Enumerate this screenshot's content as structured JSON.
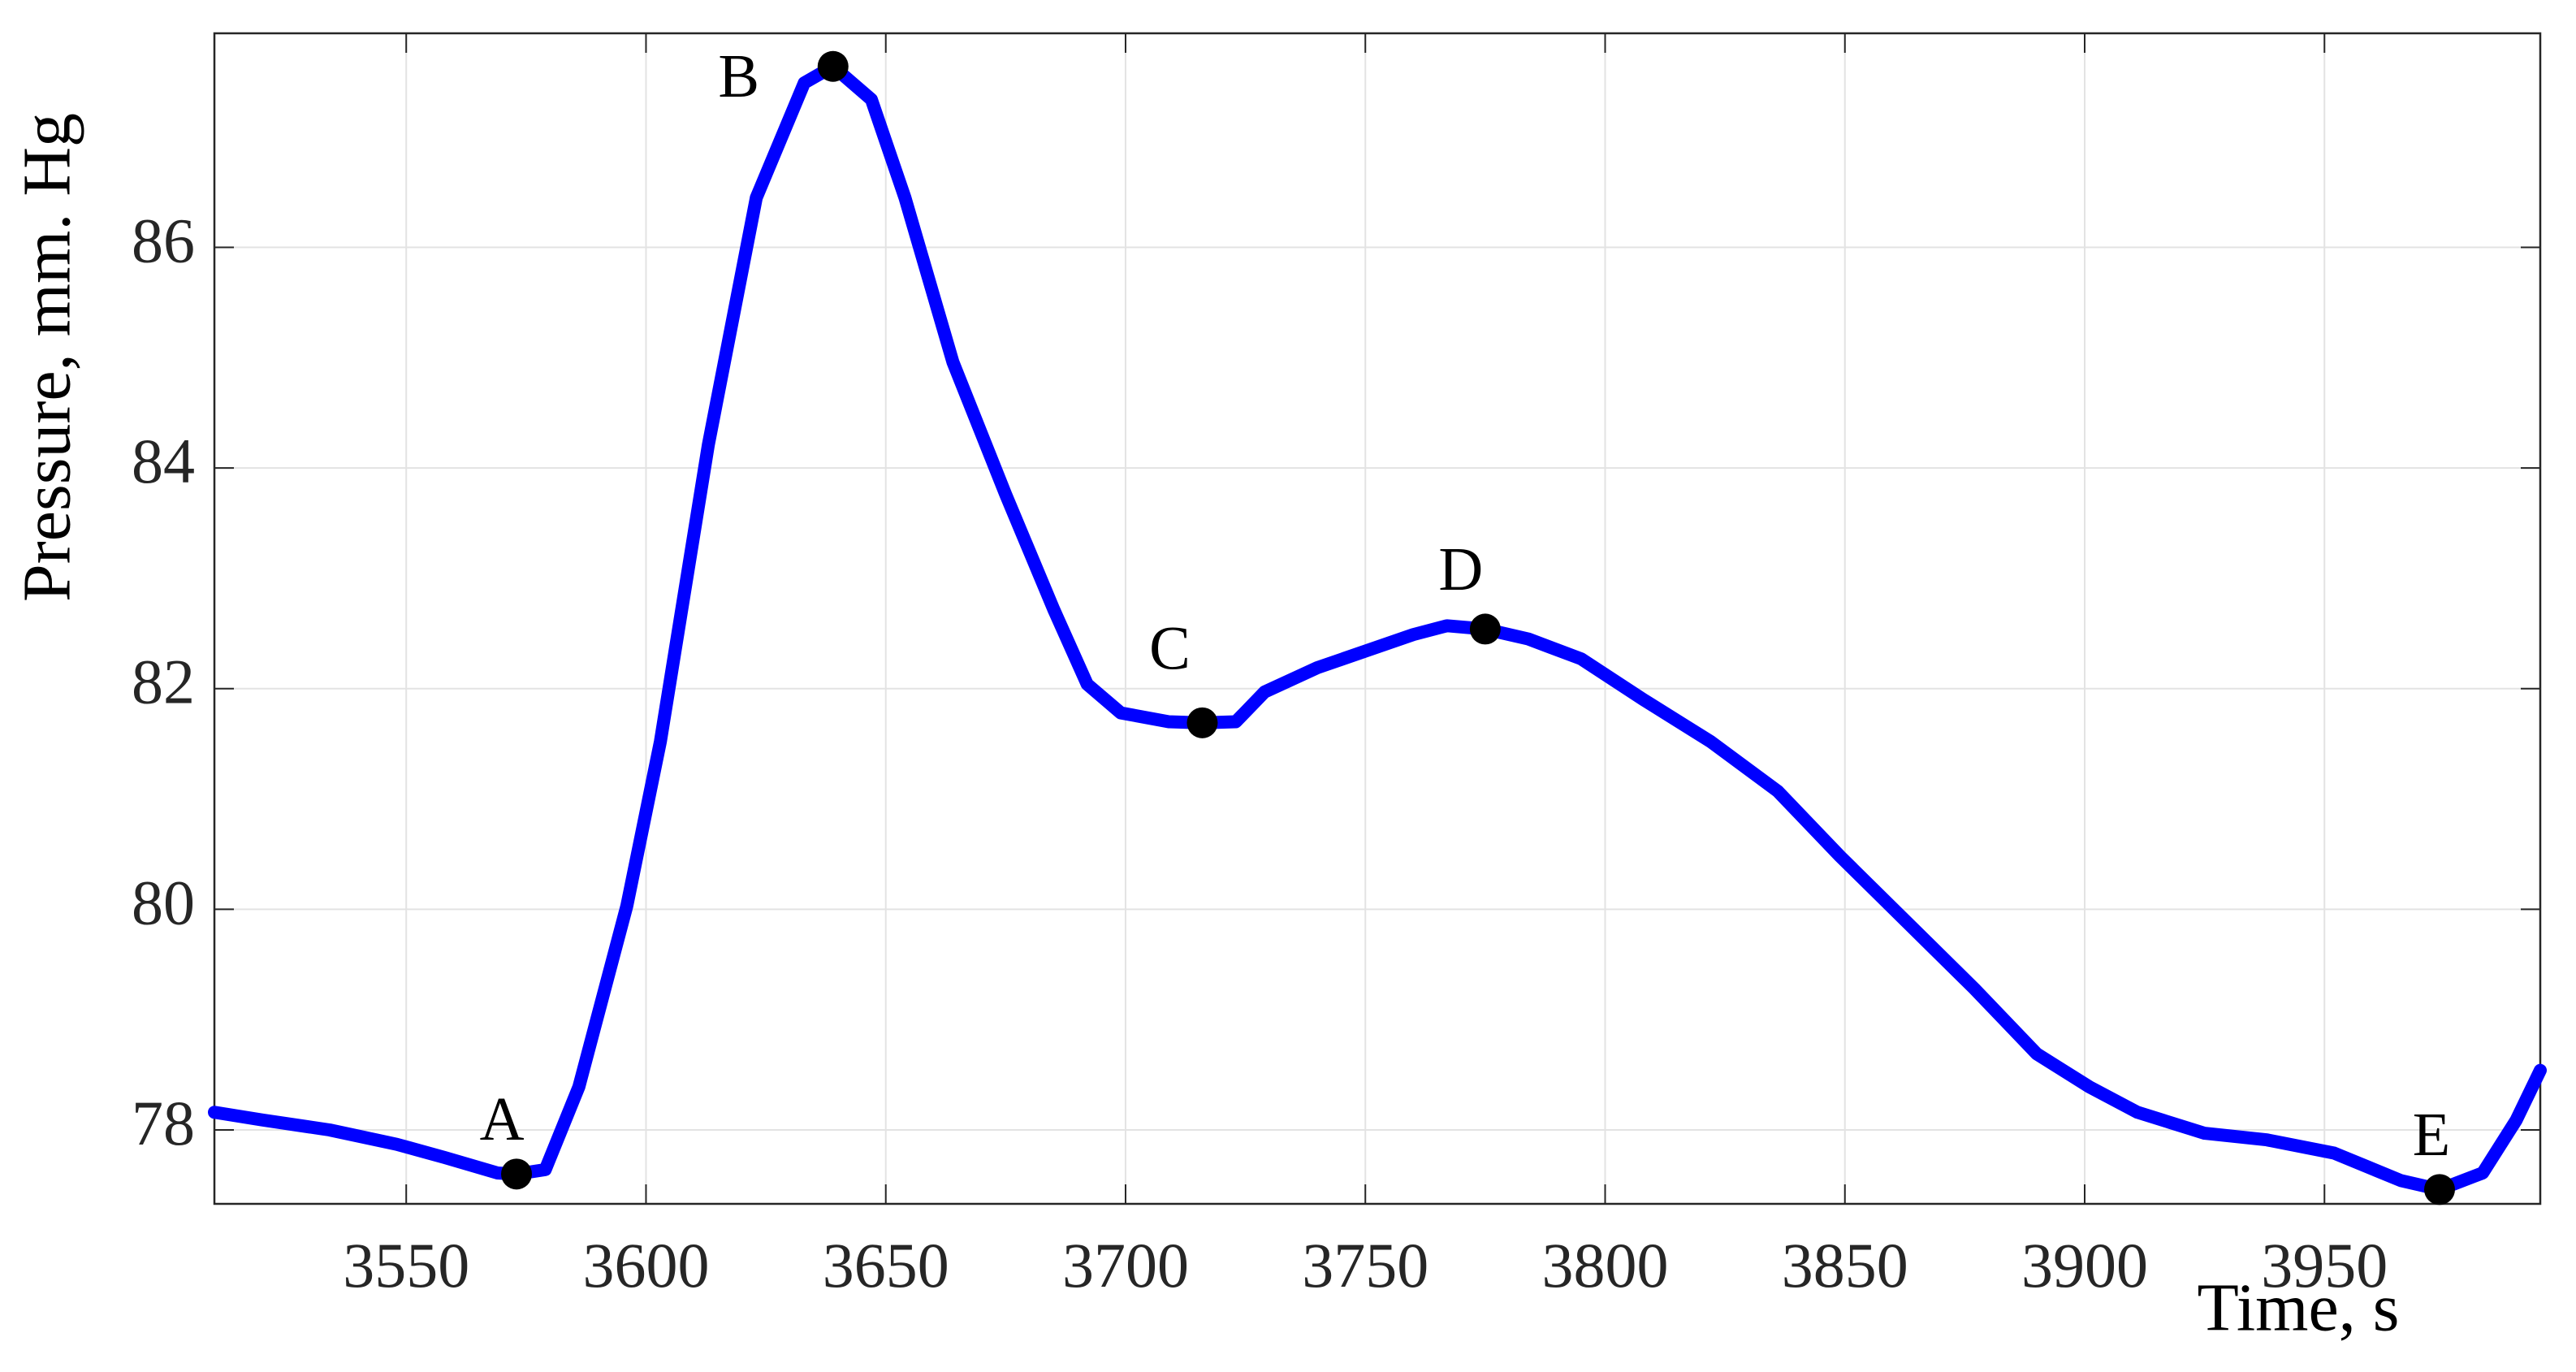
{
  "chart_data": {
    "type": "line",
    "x_label": "Time, s",
    "y_label": "Pressure, mm. Hg",
    "x": [
      3510,
      3520,
      3534,
      3548,
      3558,
      3569,
      3573,
      3579,
      3586,
      3596,
      3603,
      3613,
      3623,
      3633,
      3639,
      3647,
      3654,
      3664,
      3675,
      3685,
      3692,
      3699,
      3709,
      3716,
      3723,
      3729,
      3740,
      3750,
      3760,
      3767,
      3775,
      3784,
      3795,
      3808,
      3822,
      3836,
      3849,
      3863,
      3877,
      3890,
      3901,
      3911,
      3925,
      3938,
      3952,
      3966,
      3974,
      3983,
      3990,
      3995
    ],
    "series": [
      {
        "color": "#0000ff",
        "values": [
          78.16,
          78.09,
          78.0,
          77.87,
          77.75,
          77.61,
          77.6,
          77.64,
          78.39,
          80.03,
          81.52,
          84.21,
          86.45,
          87.49,
          87.64,
          87.34,
          86.45,
          84.96,
          83.76,
          82.72,
          82.04,
          81.78,
          81.7,
          81.69,
          81.7,
          81.97,
          82.19,
          82.34,
          82.49,
          82.57,
          82.54,
          82.45,
          82.27,
          81.9,
          81.52,
          81.07,
          80.48,
          79.88,
          79.28,
          78.69,
          78.39,
          78.16,
          77.97,
          77.91,
          77.79,
          77.54,
          77.46,
          77.61,
          78.09,
          78.54
        ]
      }
    ],
    "points": [
      {
        "label": "A",
        "x": 3573,
        "y": 77.6
      },
      {
        "label": "B",
        "x": 3639,
        "y": 87.64
      },
      {
        "label": "C",
        "x": 3716,
        "y": 81.69
      },
      {
        "label": "D",
        "x": 3775,
        "y": 82.54
      },
      {
        "label": "E",
        "x": 3974,
        "y": 77.46
      }
    ],
    "point_color": "#000000",
    "xlim": [
      3510,
      3995
    ],
    "ylim": [
      77.33,
      87.94
    ],
    "xticks": [
      3550,
      3600,
      3650,
      3700,
      3750,
      3800,
      3850,
      3900,
      3950
    ],
    "yticks": [
      78,
      80,
      82,
      84,
      86
    ],
    "grid": true
  }
}
